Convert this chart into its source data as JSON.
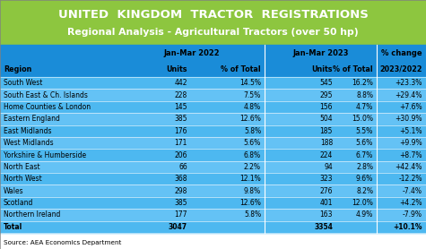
{
  "title1": "UNITED  KINGDOM  TRACTOR  REGISTRATIONS",
  "title2": "Regional Analysis - Agricultural Tractors (over 50 hp)",
  "source": "Source: AEA Economics Department",
  "green_bg": "#8dc63f",
  "blue_header_bg": "#1a8cd8",
  "row_color1": "#4db8f0",
  "row_color2": "#64c2f5",
  "col_subheaders": [
    "Region",
    "Units",
    "% of Total",
    "Units",
    "% of Total",
    "2023/2022"
  ],
  "regions": [
    "South West",
    "South East & Ch. Islands",
    "Home Counties & London",
    "Eastern England",
    "East Midlands",
    "West Midlands",
    "Yorkshire & Humberside",
    "North East",
    "North West",
    "Wales",
    "Scotland",
    "Northern Ireland",
    "Total"
  ],
  "units_2022": [
    "442",
    "228",
    "145",
    "385",
    "176",
    "171",
    "206",
    "66",
    "368",
    "298",
    "385",
    "177",
    "3047"
  ],
  "pct_2022": [
    "14.5%",
    "7.5%",
    "4.8%",
    "12.6%",
    "5.8%",
    "5.6%",
    "6.8%",
    "2.2%",
    "12.1%",
    "9.8%",
    "12.6%",
    "5.8%",
    ""
  ],
  "units_2023": [
    "545",
    "295",
    "156",
    "504",
    "185",
    "188",
    "224",
    "94",
    "323",
    "276",
    "401",
    "163",
    "3354"
  ],
  "pct_2023": [
    "16.2%",
    "8.8%",
    "4.7%",
    "15.0%",
    "5.5%",
    "5.6%",
    "6.7%",
    "2.8%",
    "9.6%",
    "8.2%",
    "12.0%",
    "4.9%",
    ""
  ],
  "pct_change": [
    "+23.3%",
    "+29.4%",
    "+7.6%",
    "+30.9%",
    "+5.1%",
    "+9.9%",
    "+8.7%",
    "+42.4%",
    "-12.2%",
    "-7.4%",
    "+4.2%",
    "-7.9%",
    "+10.1%"
  ]
}
